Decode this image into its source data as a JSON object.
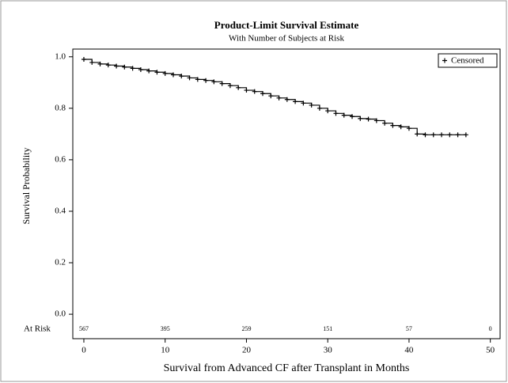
{
  "chart_data": {
    "type": "step",
    "title": "Product-Limit Survival Estimate",
    "subtitle": "With Number of Subjects at Risk",
    "x_label": "Survival from Advanced CF after Transplant in Months",
    "y_label": "Survival Probability",
    "x": [
      0,
      1,
      2,
      3,
      4,
      5,
      6,
      7,
      8,
      9,
      10,
      11,
      12,
      13,
      14,
      15,
      16,
      17,
      18,
      19,
      20,
      21,
      22,
      23,
      24,
      25,
      26,
      27,
      28,
      29,
      30,
      31,
      32,
      33,
      34,
      35,
      36,
      37,
      38,
      39,
      40,
      41,
      42,
      43,
      44,
      45,
      46,
      47
    ],
    "series": [
      {
        "name": "Censored",
        "color": "#000000",
        "values": [
          0.99,
          0.978,
          0.972,
          0.968,
          0.964,
          0.96,
          0.955,
          0.95,
          0.945,
          0.94,
          0.935,
          0.93,
          0.925,
          0.918,
          0.912,
          0.908,
          0.903,
          0.896,
          0.888,
          0.88,
          0.87,
          0.865,
          0.857,
          0.848,
          0.84,
          0.834,
          0.826,
          0.82,
          0.812,
          0.8,
          0.79,
          0.78,
          0.773,
          0.768,
          0.76,
          0.758,
          0.752,
          0.742,
          0.733,
          0.728,
          0.722,
          0.7,
          0.697,
          0.697,
          0.697,
          0.697,
          0.697,
          0.697
        ]
      }
    ],
    "legend": "upper right",
    "at_risk": {
      "label": "At Risk",
      "x": [
        0,
        10,
        20,
        30,
        40,
        50
      ],
      "counts": [
        567,
        395,
        259,
        151,
        57,
        0
      ]
    },
    "xlim": [
      -1.36,
      51.2
    ],
    "xticks": [
      0,
      10,
      20,
      30,
      40,
      50
    ],
    "ylim": [
      -0.095,
      1.03
    ],
    "yticks": [
      {
        "value": 0,
        "label": "0.0"
      },
      {
        "value": 0.2,
        "label": "0.2"
      },
      {
        "value": 0.4,
        "label": "0.4"
      },
      {
        "value": 0.6,
        "label": "0.6"
      },
      {
        "value": 0.8,
        "label": "0.8"
      },
      {
        "value": 1,
        "label": "1.0"
      }
    ]
  }
}
